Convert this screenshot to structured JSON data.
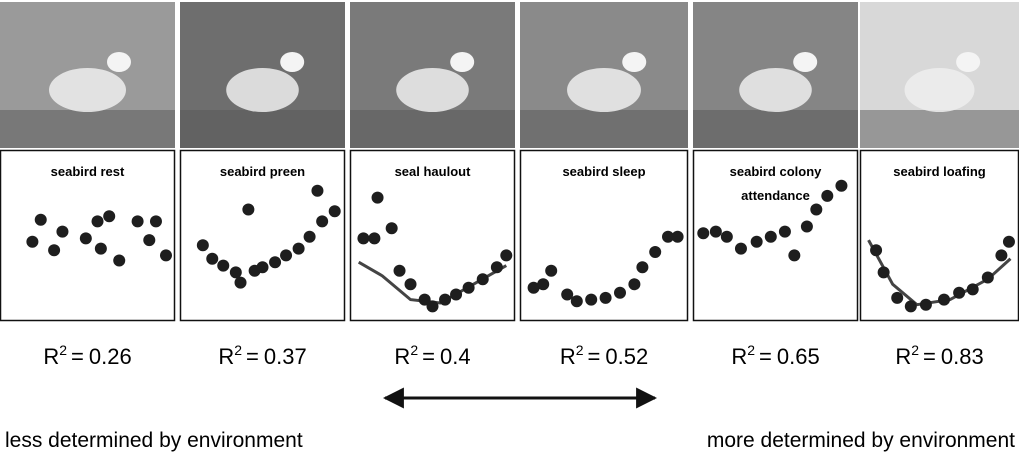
{
  "panels": [
    {
      "title_lines": [
        "seabird rest"
      ],
      "r_squared": 0.26,
      "points": {
        "x": [
          22,
          35,
          17,
          30,
          49,
          56,
          63,
          58,
          69,
          80,
          87,
          91,
          97
        ],
        "y": [
          59,
          52,
          46,
          41,
          48,
          58,
          61,
          42,
          35,
          58,
          47,
          58,
          38
        ]
      }
    },
    {
      "title_lines": [
        "seabird preen"
      ],
      "r_squared": 0.37,
      "points": {
        "x": [
          41,
          85,
          12,
          18,
          25,
          33,
          36,
          45,
          50,
          58,
          65,
          73,
          80,
          88,
          96
        ],
        "y": [
          65,
          76,
          44,
          36,
          32,
          28,
          22,
          29,
          31,
          34,
          38,
          42,
          49,
          58,
          64
        ]
      }
    },
    {
      "title_lines": [
        "seal haulout"
      ],
      "r_squared": 0.4,
      "points": {
        "x": [
          15,
          6,
          13,
          24,
          29,
          36,
          45,
          50,
          58,
          65,
          73,
          82,
          91,
          97
        ],
        "y": [
          72,
          48,
          48,
          54,
          29,
          21,
          12,
          8,
          12,
          15,
          19,
          24,
          31,
          38
        ]
      },
      "fit": {
        "x": [
          3,
          18,
          36,
          55,
          76,
          97
        ],
        "y": [
          34,
          26,
          12,
          10,
          21,
          32
        ]
      }
    },
    {
      "title_lines": [
        "seabird sleep"
      ],
      "r_squared": 0.52,
      "points": {
        "x": [
          17,
          6,
          12,
          27,
          33,
          42,
          51,
          60,
          69,
          74,
          82,
          90,
          96
        ],
        "y": [
          29,
          19,
          21,
          15,
          11,
          12,
          13,
          16,
          21,
          31,
          40,
          49,
          49
        ]
      }
    },
    {
      "title_lines": [
        "seabird colony",
        "attendance"
      ],
      "r_squared": 0.65,
      "points": {
        "x": [
          4,
          12,
          19,
          28,
          38,
          47,
          56,
          62,
          70,
          76,
          83,
          92
        ],
        "y": [
          51,
          52,
          49,
          42,
          46,
          49,
          52,
          38,
          55,
          65,
          73,
          79
        ]
      }
    },
    {
      "title_lines": [
        "seabird loafing"
      ],
      "r_squared": 0.83,
      "points": {
        "x": [
          8,
          13,
          22,
          31,
          41,
          53,
          63,
          72,
          82,
          91,
          96
        ],
        "y": [
          41,
          28,
          13,
          8,
          9,
          12,
          16,
          18,
          25,
          38,
          46
        ]
      },
      "fit": {
        "x": [
          3,
          19,
          35,
          57,
          82,
          97
        ],
        "y": [
          47,
          21,
          9,
          12,
          24,
          36
        ]
      }
    }
  ],
  "stat": {
    "symbol": "R",
    "exponent": "2",
    "equals": "="
  },
  "arrow_labels": {
    "left": "less determined by environment",
    "right": "more determined by environment"
  }
}
